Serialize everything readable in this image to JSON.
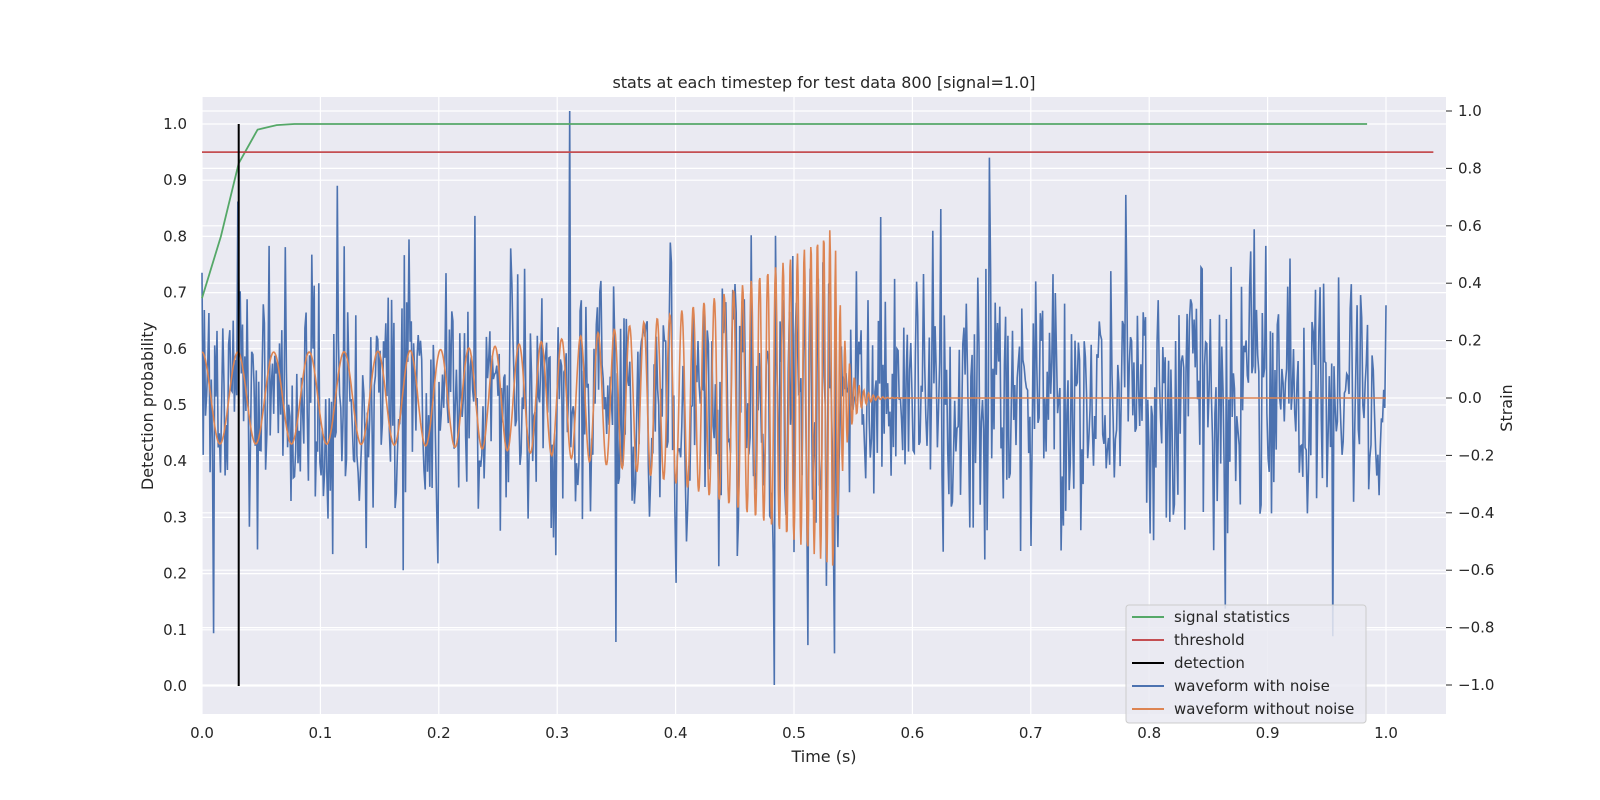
{
  "chart_data": {
    "type": "line",
    "title": "stats at each timestep for test data 800 [signal=1.0]",
    "xlabel": "Time (s)",
    "ylabel_left": "Detection probability",
    "ylabel_right": "Strain",
    "xlim": [
      0.0,
      1.05
    ],
    "ylim_left": [
      -0.05,
      1.05
    ],
    "ylim_right": [
      -1.1,
      1.05
    ],
    "x_ticks": [
      "0.0",
      "0.1",
      "0.2",
      "0.3",
      "0.4",
      "0.5",
      "0.6",
      "0.7",
      "0.8",
      "0.9",
      "1.0"
    ],
    "y_ticks_left": [
      "0.0",
      "0.1",
      "0.2",
      "0.3",
      "0.4",
      "0.5",
      "0.6",
      "0.7",
      "0.8",
      "0.9",
      "1.0"
    ],
    "y_ticks_right": [
      "−1.0",
      "−0.8",
      "−0.6",
      "−0.4",
      "−0.2",
      "0.0",
      "0.2",
      "0.4",
      "0.6",
      "0.8",
      "1.0"
    ],
    "grid": true,
    "legend_position": "lower-right",
    "series": [
      {
        "name": "signal statistics",
        "axis": "left",
        "color": "#55a868",
        "x": [
          0.0,
          0.016,
          0.031,
          0.047,
          0.063,
          0.078,
          0.094,
          0.2,
          0.4,
          0.6,
          0.8,
          0.984
        ],
        "y": [
          0.69,
          0.8,
          0.93,
          0.99,
          0.998,
          1.0,
          1.0,
          1.0,
          1.0,
          1.0,
          1.0,
          1.0
        ]
      },
      {
        "name": "threshold",
        "axis": "left",
        "color": "#c44e52",
        "x": [
          0.0,
          1.04
        ],
        "y": [
          0.95,
          0.95
        ]
      },
      {
        "name": "detection",
        "axis": "left",
        "color": "#000000",
        "x": [
          0.031,
          0.031
        ],
        "y": [
          0.0,
          1.0
        ]
      },
      {
        "name": "waveform with noise",
        "axis": "right",
        "color": "#4c72b0",
        "x_range": [
          0.0,
          1.0
        ],
        "sample_rate": 1024,
        "amplitude_std": 0.22,
        "peaks": [
          {
            "x": 0.311,
            "y": 1.0
          },
          {
            "x": 0.483,
            "y": -1.0
          },
          {
            "x": 0.01,
            "y": -0.82
          },
          {
            "x": 0.534,
            "y": -0.89
          },
          {
            "x": 0.955,
            "y": -0.83
          },
          {
            "x": 0.35,
            "y": -0.85
          }
        ]
      },
      {
        "name": "waveform without noise",
        "axis": "right",
        "color": "#dd8452",
        "x_range": [
          0.0,
          1.0
        ],
        "sample_rate": 2048,
        "merger_time": 0.535,
        "start_amplitude": 0.16,
        "merger_amplitude": 0.6,
        "start_frequency": 33,
        "merger_frequency": 200,
        "ringdown_tau": 0.008
      }
    ]
  }
}
